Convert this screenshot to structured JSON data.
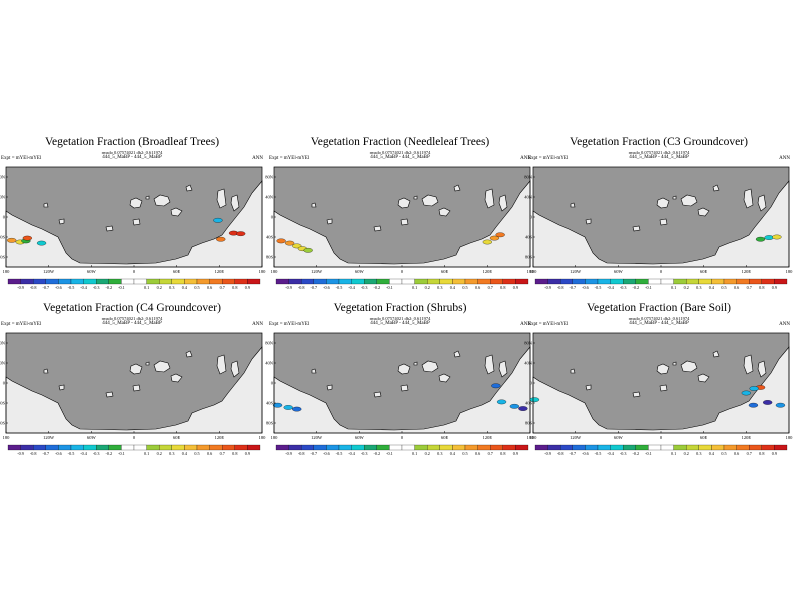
{
  "colors": {
    "ocean": "#969696",
    "land": "#ececec",
    "coast": "#000000",
    "colorbar": [
      "#5b1d8c",
      "#3b2ea6",
      "#2b49c6",
      "#1f6dd9",
      "#1c94e4",
      "#19b4e6",
      "#11c9cf",
      "#1aa875",
      "#2fae3b",
      "#ffffff",
      "#ffffff",
      "#9ccc3a",
      "#c5d638",
      "#e8d93a",
      "#f4bf38",
      "#f49a2c",
      "#f17a22",
      "#ea561b",
      "#dd3018",
      "#c91618"
    ]
  },
  "shared": {
    "expt": "Expt = mYEl-mYEl",
    "season": "ANN",
    "lat_ticks": [
      "80N",
      "40N",
      "0",
      "40S",
      "80S"
    ],
    "lon_ticks": [
      "180",
      "120W",
      "60W",
      "0",
      "60E",
      "120E",
      "180"
    ],
    "colorbar_labels": [
      "-0.9",
      "-0.8",
      "-0.7",
      "-0.6",
      "-0.5",
      "-0.4",
      "-0.3",
      "-0.2",
      "-0.1",
      "0.1",
      "0.2",
      "0.3",
      "0.4",
      "0.5",
      "0.6",
      "0.7",
      "0.8",
      "0.9"
    ]
  },
  "chart_data": [
    {
      "type": "heatmap",
      "title": "Vegetation Fraction (Broadleaf Trees)",
      "meta": "rmsdo 0.07574021 db2: 0.611974",
      "runs": "444_5_MaBP - 444_5_MaBP",
      "blobs": [
        {
          "lon": -172,
          "lat": -42,
          "value": 0.5
        },
        {
          "lon": -160,
          "lat": -45,
          "value": 0.3
        },
        {
          "lon": -152,
          "lat": -43,
          "value": -0.2
        },
        {
          "lon": -130,
          "lat": -47,
          "value": -0.3
        },
        {
          "lon": -150,
          "lat": -38,
          "value": 0.7
        },
        {
          "lon": 140,
          "lat": -29,
          "value": 0.9
        },
        {
          "lon": 150,
          "lat": -30,
          "value": 0.8
        },
        {
          "lon": 122,
          "lat": -40,
          "value": 0.6
        },
        {
          "lon": 118,
          "lat": -6,
          "value": -0.4
        }
      ]
    },
    {
      "type": "heatmap",
      "title": "Vegetation Fraction (Needleleaf Trees)",
      "meta": "rmsdo 0.07574021 db2: 0.611974",
      "runs": "444_5_MaBP - 444_5_MaBP",
      "blobs": [
        {
          "lon": -170,
          "lat": -43,
          "value": 0.6
        },
        {
          "lon": -158,
          "lat": -47,
          "value": 0.5
        },
        {
          "lon": -148,
          "lat": -52,
          "value": 0.3
        },
        {
          "lon": -140,
          "lat": -57,
          "value": 0.4
        },
        {
          "lon": -132,
          "lat": -60,
          "value": 0.2
        },
        {
          "lon": 130,
          "lat": -38,
          "value": 0.5
        },
        {
          "lon": 120,
          "lat": -45,
          "value": 0.4
        },
        {
          "lon": 138,
          "lat": -32,
          "value": 0.6
        }
      ]
    },
    {
      "type": "heatmap",
      "title": "Vegetation Fraction (C3 Groundcover)",
      "meta": "rmsdo 0.07574021 db2: 0.611974",
      "runs": "444_5_MaBP - 444_5_MaBP",
      "blobs": [
        {
          "lon": 152,
          "lat": -37,
          "value": -0.3
        },
        {
          "lon": 163,
          "lat": -36,
          "value": 0.3
        },
        {
          "lon": 140,
          "lat": -40,
          "value": -0.2
        }
      ]
    },
    {
      "type": "heatmap",
      "title": "Vegetation Fraction (C4 Groundcover)",
      "meta": "rmsdo 0.07574021 db2: 0.611974",
      "runs": "444_5_MaBP - 444_5_MaBP",
      "blobs": []
    },
    {
      "type": "heatmap",
      "title": "Vegetation Fraction (Shrubs)",
      "meta": "rmsdo 0.07574021 db2: 0.611974",
      "runs": "444_5_MaBP - 444_5_MaBP",
      "blobs": [
        {
          "lon": -175,
          "lat": -40,
          "value": -0.6
        },
        {
          "lon": -160,
          "lat": -44,
          "value": -0.4
        },
        {
          "lon": -148,
          "lat": -47,
          "value": -0.7
        },
        {
          "lon": 140,
          "lat": -34,
          "value": -0.5
        },
        {
          "lon": 158,
          "lat": -42,
          "value": -0.6
        },
        {
          "lon": 170,
          "lat": -46,
          "value": -0.8
        },
        {
          "lon": 132,
          "lat": -5,
          "value": -0.7
        }
      ]
    },
    {
      "type": "heatmap",
      "title": "Vegetation Fraction (Bare Soil)",
      "meta": "rmsdo 0.07574021 db2: 0.611974",
      "runs": "444_5_MaBP - 444_5_MaBP",
      "blobs": [
        {
          "lon": -178,
          "lat": -30,
          "value": -0.3
        },
        {
          "lon": 130,
          "lat": -40,
          "value": -0.7
        },
        {
          "lon": 150,
          "lat": -35,
          "value": -0.8
        },
        {
          "lon": 168,
          "lat": -40,
          "value": -0.6
        },
        {
          "lon": 140,
          "lat": -8,
          "value": 0.7
        },
        {
          "lon": 131,
          "lat": -10,
          "value": -0.5
        },
        {
          "lon": 120,
          "lat": -18,
          "value": -0.4
        }
      ]
    }
  ]
}
